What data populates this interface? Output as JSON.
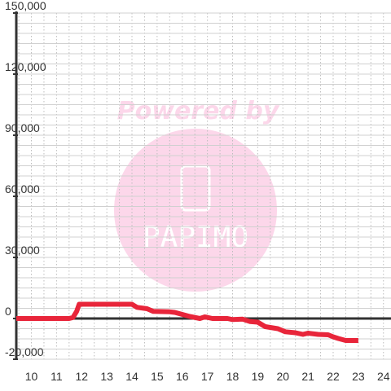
{
  "chart_data": {
    "type": "line",
    "title": "",
    "xlabel": "",
    "ylabel": "",
    "xlim": [
      9.4,
      24.3
    ],
    "ylim": [
      -20000,
      150000
    ],
    "x_ticks": [
      "10",
      "11",
      "12",
      "13",
      "14",
      "15",
      "16",
      "17",
      "18",
      "19",
      "20",
      "21",
      "22",
      "23",
      "24"
    ],
    "y_ticks": [
      "150,000",
      "120,000",
      "90,000",
      "60,000",
      "30,000",
      "0",
      "-20,000"
    ],
    "y_tick_values": [
      150000,
      120000,
      90000,
      60000,
      30000,
      0,
      -20000
    ],
    "grid": true,
    "legend": "none",
    "series": [
      {
        "color": "#e8253a",
        "points": [
          [
            9.4,
            0
          ],
          [
            11.0,
            0
          ],
          [
            11.5,
            0
          ],
          [
            11.65,
            500
          ],
          [
            11.8,
            3500
          ],
          [
            11.9,
            7000
          ],
          [
            12.3,
            7000
          ],
          [
            13.0,
            7000
          ],
          [
            13.7,
            7000
          ],
          [
            14.0,
            7000
          ],
          [
            14.2,
            5500
          ],
          [
            14.6,
            4800
          ],
          [
            14.85,
            3500
          ],
          [
            15.5,
            3300
          ],
          [
            15.7,
            3000
          ],
          [
            16.0,
            2000
          ],
          [
            16.3,
            1000
          ],
          [
            16.7,
            0
          ],
          [
            16.9,
            800
          ],
          [
            17.2,
            0
          ],
          [
            17.8,
            0
          ],
          [
            18.0,
            -500
          ],
          [
            18.4,
            -300
          ],
          [
            18.7,
            -1500
          ],
          [
            19.0,
            -1800
          ],
          [
            19.3,
            -4000
          ],
          [
            19.8,
            -5000
          ],
          [
            20.1,
            -6500
          ],
          [
            20.5,
            -7000
          ],
          [
            20.8,
            -7800
          ],
          [
            21.0,
            -7200
          ],
          [
            21.4,
            -7800
          ],
          [
            21.8,
            -8000
          ],
          [
            22.0,
            -9000
          ],
          [
            22.2,
            -9800
          ],
          [
            22.5,
            -10800
          ],
          [
            23.0,
            -10800
          ]
        ]
      }
    ],
    "zero_line": 0,
    "watermark": {
      "text": "Powered by",
      "logo_text": "PAPIMO",
      "color": "#fcd7ea"
    }
  }
}
